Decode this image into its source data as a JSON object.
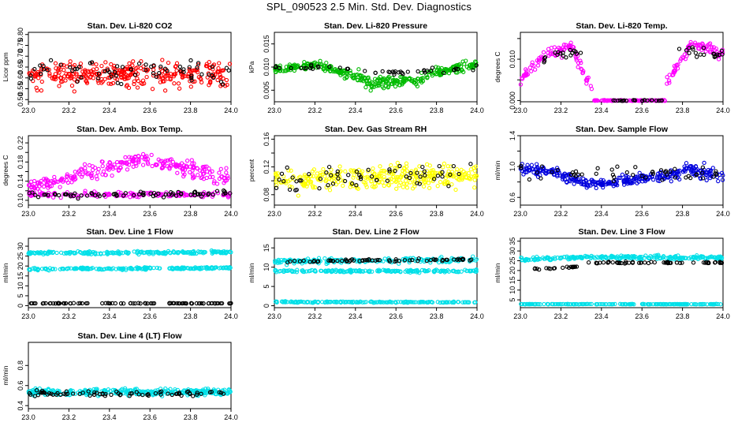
{
  "page_title": "SPL_090523  2.5 Min. Std. Dev. Diagnostics",
  "chart_data": [
    {
      "type": "scatter",
      "title": "Stan. Dev. Li-820 CO2",
      "ylabel": "Licor ppm",
      "xlabel": "",
      "xlim": [
        23.0,
        24.0
      ],
      "ylim": [
        0.49,
        0.81
      ],
      "xticks": [
        23.0,
        23.2,
        23.4,
        23.6,
        23.8,
        24.0
      ],
      "yticks": [
        0.5,
        0.55,
        0.6,
        0.65,
        0.7,
        0.75,
        0.8
      ],
      "ytick_labels": [
        "0.50",
        "0.55",
        "0.60",
        "0.65",
        "0.70",
        "0.75",
        "0.80"
      ],
      "series": [
        {
          "name": "bands",
          "color": "#ff0000",
          "count": 320,
          "bands": [
            {
              "x0": 23.0,
              "x1": 24.0,
              "y0": 0.615,
              "y1": 0.615,
              "spread": 0.055
            }
          ]
        },
        {
          "name": "black",
          "color": "#000000",
          "count": 65,
          "bands": [
            {
              "x0": 23.0,
              "x1": 24.0,
              "y0": 0.63,
              "y1": 0.63,
              "spread": 0.05
            }
          ]
        }
      ]
    },
    {
      "type": "scatter",
      "title": "Stan. Dev. Li-820 Pressure",
      "ylabel": "kPa",
      "xlabel": "",
      "xlim": [
        23.0,
        24.0
      ],
      "ylim": [
        0.0025,
        0.0175
      ],
      "xticks": [
        23.0,
        23.2,
        23.4,
        23.6,
        23.8,
        24.0
      ],
      "yticks": [
        0.005,
        0.01,
        0.015
      ],
      "ytick_labels": [
        "0.005",
        "0.010",
        "0.015"
      ],
      "series": [
        {
          "name": "green",
          "color": "#00bb00",
          "count": 340,
          "bands": [
            {
              "x0": 23.0,
              "x1": 23.2,
              "y0": 0.0095,
              "y1": 0.0105,
              "spread": 0.0008
            },
            {
              "x0": 23.2,
              "x1": 23.45,
              "y0": 0.0105,
              "y1": 0.0075,
              "spread": 0.0011
            },
            {
              "x0": 23.45,
              "x1": 23.75,
              "y0": 0.0065,
              "y1": 0.0072,
              "spread": 0.0011
            },
            {
              "x0": 23.75,
              "x1": 24.0,
              "y0": 0.0085,
              "y1": 0.0105,
              "spread": 0.0009
            }
          ]
        },
        {
          "name": "black",
          "color": "#000000",
          "count": 45,
          "bands": [
            {
              "x0": 23.0,
              "x1": 23.3,
              "y0": 0.0098,
              "y1": 0.0105,
              "spread": 0.0005
            },
            {
              "x0": 23.3,
              "x1": 23.7,
              "y0": 0.0095,
              "y1": 0.0085,
              "spread": 0.0006
            },
            {
              "x0": 23.7,
              "x1": 24.0,
              "y0": 0.009,
              "y1": 0.0098,
              "spread": 0.0005
            }
          ]
        }
      ]
    },
    {
      "type": "scatter",
      "title": "Stan. Dev. Li-820 Temp.",
      "ylabel": "degrees C",
      "xlabel": "",
      "xlim": [
        23.0,
        24.0
      ],
      "ylim": [
        -0.0003,
        0.0165
      ],
      "xticks": [
        23.0,
        23.2,
        23.4,
        23.6,
        23.8,
        24.0
      ],
      "yticks": [
        0.0,
        0.005,
        0.01,
        0.015
      ],
      "ytick_labels": [
        "0.000",
        "",
        "0.010",
        ""
      ],
      "series": [
        {
          "name": "magenta",
          "color": "#ff00ff",
          "count": 260,
          "bands": [
            {
              "x0": 23.0,
              "x1": 23.12,
              "y0": 0.005,
              "y1": 0.011,
              "spread": 0.0015
            },
            {
              "x0": 23.12,
              "x1": 23.27,
              "y0": 0.011,
              "y1": 0.013,
              "spread": 0.0012
            },
            {
              "x0": 23.27,
              "x1": 23.36,
              "y0": 0.011,
              "y1": 0.002,
              "spread": 0.0015
            },
            {
              "x0": 23.36,
              "x1": 23.72,
              "y0": 0.0,
              "y1": 0.0,
              "spread": 0.0001
            },
            {
              "x0": 23.72,
              "x1": 23.85,
              "y0": 0.004,
              "y1": 0.014,
              "spread": 0.0015
            },
            {
              "x0": 23.85,
              "x1": 24.0,
              "y0": 0.014,
              "y1": 0.011,
              "spread": 0.0015
            }
          ]
        },
        {
          "name": "black",
          "color": "#000000",
          "count": 60,
          "bands": [
            {
              "x0": 23.1,
              "x1": 23.3,
              "y0": 0.01,
              "y1": 0.012,
              "spread": 0.001
            },
            {
              "x0": 23.45,
              "x1": 23.7,
              "y0": 0.0,
              "y1": 0.0,
              "spread": 0.0001
            },
            {
              "x0": 23.78,
              "x1": 24.0,
              "y0": 0.012,
              "y1": 0.011,
              "spread": 0.0012
            }
          ]
        }
      ]
    },
    {
      "type": "scatter",
      "title": "Stan. Dev. Amb. Box Temp.",
      "ylabel": "degrees C",
      "xlabel": "",
      "xlim": [
        23.0,
        24.0
      ],
      "ylim": [
        0.09,
        0.235
      ],
      "xticks": [
        23.0,
        23.2,
        23.4,
        23.6,
        23.8,
        24.0
      ],
      "yticks": [
        0.1,
        0.12,
        0.14,
        0.16,
        0.18,
        0.2,
        0.22
      ],
      "ytick_labels": [
        "0.10",
        "",
        "0.14",
        "",
        "0.18",
        "",
        "0.22"
      ],
      "series": [
        {
          "name": "magenta-high",
          "color": "#ff00ff",
          "count": 260,
          "bands": [
            {
              "x0": 23.0,
              "x1": 23.25,
              "y0": 0.125,
              "y1": 0.15,
              "spread": 0.013
            },
            {
              "x0": 23.25,
              "x1": 23.6,
              "y0": 0.15,
              "y1": 0.19,
              "spread": 0.017
            },
            {
              "x0": 23.6,
              "x1": 24.0,
              "y0": 0.185,
              "y1": 0.145,
              "spread": 0.017
            }
          ]
        },
        {
          "name": "magenta-low",
          "color": "#ff00ff",
          "count": 150,
          "bands": [
            {
              "x0": 23.0,
              "x1": 24.0,
              "y0": 0.112,
              "y1": 0.112,
              "spread": 0.006
            }
          ]
        },
        {
          "name": "black",
          "color": "#000000",
          "count": 75,
          "bands": [
            {
              "x0": 23.0,
              "x1": 24.0,
              "y0": 0.11,
              "y1": 0.115,
              "spread": 0.006
            }
          ]
        }
      ]
    },
    {
      "type": "scatter",
      "title": "Stan. Dev. Gas Stream RH",
      "ylabel": "percent",
      "xlabel": "",
      "xlim": [
        23.0,
        24.0
      ],
      "ylim": [
        0.065,
        0.165
      ],
      "xticks": [
        23.0,
        23.2,
        23.4,
        23.6,
        23.8,
        24.0
      ],
      "yticks": [
        0.08,
        0.1,
        0.12,
        0.14,
        0.16
      ],
      "ytick_labels": [
        "0.08",
        "",
        "0.12",
        "",
        "0.16"
      ],
      "series": [
        {
          "name": "yellow",
          "color": "#ffff00",
          "count": 330,
          "bands": [
            {
              "x0": 23.0,
              "x1": 24.0,
              "y0": 0.103,
              "y1": 0.108,
              "spread": 0.016
            }
          ]
        },
        {
          "name": "black",
          "color": "#000000",
          "count": 60,
          "bands": [
            {
              "x0": 23.0,
              "x1": 24.0,
              "y0": 0.1,
              "y1": 0.11,
              "spread": 0.016
            }
          ]
        }
      ]
    },
    {
      "type": "scatter",
      "title": "Stan. Dev. Sample Flow",
      "ylabel": "ml/min",
      "xlabel": "",
      "xlim": [
        23.0,
        24.0
      ],
      "ylim": [
        0.5,
        1.4
      ],
      "xticks": [
        23.0,
        23.2,
        23.4,
        23.6,
        23.8,
        24.0
      ],
      "yticks": [
        0.6,
        0.8,
        1.0,
        1.2,
        1.4
      ],
      "ytick_labels": [
        "0.6",
        "",
        "1.0",
        "",
        "1.4"
      ],
      "series": [
        {
          "name": "blue",
          "color": "#0000dd",
          "count": 320,
          "bands": [
            {
              "x0": 23.0,
              "x1": 23.2,
              "y0": 0.97,
              "y1": 0.93,
              "spread": 0.07
            },
            {
              "x0": 23.2,
              "x1": 23.4,
              "y0": 0.88,
              "y1": 0.75,
              "spread": 0.06
            },
            {
              "x0": 23.4,
              "x1": 23.8,
              "y0": 0.78,
              "y1": 0.9,
              "spread": 0.06
            },
            {
              "x0": 23.8,
              "x1": 24.0,
              "y0": 1.0,
              "y1": 0.85,
              "spread": 0.08
            }
          ]
        },
        {
          "name": "black",
          "color": "#000000",
          "count": 50,
          "bands": [
            {
              "x0": 23.0,
              "x1": 24.0,
              "y0": 0.92,
              "y1": 0.92,
              "spread": 0.1
            }
          ]
        }
      ]
    },
    {
      "type": "scatter",
      "title": "Stan. Dev. Line 1 Flow",
      "ylabel": "ml/min",
      "xlabel": "",
      "xlim": [
        23.0,
        24.0
      ],
      "ylim": [
        -1,
        34
      ],
      "xticks": [
        23.0,
        23.2,
        23.4,
        23.6,
        23.8,
        24.0
      ],
      "yticks": [
        0,
        5,
        10,
        15,
        20,
        25,
        30
      ],
      "ytick_labels": [
        "0",
        "5",
        "10",
        "15",
        "20",
        "25",
        "30"
      ],
      "series": [
        {
          "name": "cyan-upper",
          "color": "#00e0e8",
          "count": 200,
          "bands": [
            {
              "x0": 23.0,
              "x1": 24.0,
              "y0": 26.5,
              "y1": 27.0,
              "spread": 0.7
            }
          ]
        },
        {
          "name": "cyan-lower",
          "color": "#00e0e8",
          "count": 200,
          "bands": [
            {
              "x0": 23.0,
              "x1": 24.0,
              "y0": 18.5,
              "y1": 19.0,
              "spread": 0.5
            }
          ]
        },
        {
          "name": "black",
          "color": "#000000",
          "count": 90,
          "bands": [
            {
              "x0": 23.0,
              "x1": 24.0,
              "y0": 1.2,
              "y1": 1.2,
              "spread": 0.1
            }
          ]
        }
      ]
    },
    {
      "type": "scatter",
      "title": "Stan. Dev. Line 2 Flow",
      "ylabel": "ml/min",
      "xlabel": "",
      "xlim": [
        23.0,
        24.0
      ],
      "ylim": [
        -0.5,
        17.5
      ],
      "xticks": [
        23.0,
        23.2,
        23.4,
        23.6,
        23.8,
        24.0
      ],
      "yticks": [
        0,
        5,
        10,
        15
      ],
      "ytick_labels": [
        "0",
        "5",
        "10",
        "15"
      ],
      "series": [
        {
          "name": "cyan-upper",
          "color": "#00e0e8",
          "count": 180,
          "bands": [
            {
              "x0": 23.0,
              "x1": 24.0,
              "y0": 11.5,
              "y1": 12.0,
              "spread": 0.6
            }
          ]
        },
        {
          "name": "cyan-mid",
          "color": "#00e0e8",
          "count": 180,
          "bands": [
            {
              "x0": 23.0,
              "x1": 24.0,
              "y0": 9.0,
              "y1": 9.0,
              "spread": 0.3
            }
          ]
        },
        {
          "name": "cyan-low",
          "color": "#00e0e8",
          "count": 160,
          "bands": [
            {
              "x0": 23.0,
              "x1": 24.0,
              "y0": 1.0,
              "y1": 0.9,
              "spread": 0.15
            }
          ]
        },
        {
          "name": "black",
          "color": "#000000",
          "count": 65,
          "bands": [
            {
              "x0": 23.05,
              "x1": 24.0,
              "y0": 11.5,
              "y1": 12.0,
              "spread": 0.3
            }
          ]
        }
      ]
    },
    {
      "type": "scatter",
      "title": "Stan. Dev. Line 3 Flow",
      "ylabel": "ml/min",
      "xlabel": "",
      "xlim": [
        23.0,
        24.0
      ],
      "ylim": [
        1,
        36.5
      ],
      "xticks": [
        23.0,
        23.2,
        23.4,
        23.6,
        23.8,
        24.0
      ],
      "yticks": [
        5,
        10,
        15,
        20,
        25,
        30,
        35
      ],
      "ytick_labels": [
        "5",
        "10",
        "15",
        "20",
        "25",
        "30",
        "35"
      ],
      "series": [
        {
          "name": "cyan-upper",
          "color": "#00e0e8",
          "count": 230,
          "bands": [
            {
              "x0": 23.0,
              "x1": 23.3,
              "y0": 25.8,
              "y1": 26.5,
              "spread": 0.9
            },
            {
              "x0": 23.3,
              "x1": 24.0,
              "y0": 26.8,
              "y1": 26.5,
              "spread": 0.9
            }
          ]
        },
        {
          "name": "cyan-low",
          "color": "#00e0e8",
          "count": 180,
          "bands": [
            {
              "x0": 23.0,
              "x1": 24.0,
              "y0": 2.8,
              "y1": 2.8,
              "spread": 0.1
            }
          ]
        },
        {
          "name": "black",
          "color": "#000000",
          "count": 75,
          "bands": [
            {
              "x0": 23.05,
              "x1": 23.28,
              "y0": 20.5,
              "y1": 22.0,
              "spread": 0.5
            },
            {
              "x0": 23.33,
              "x1": 24.0,
              "y0": 24.0,
              "y1": 24.0,
              "spread": 0.4
            }
          ]
        }
      ]
    },
    {
      "type": "scatter",
      "title": "Stan. Dev. Line 4 (LT) Flow",
      "ylabel": "ml/min",
      "xlabel": "",
      "xlim": [
        23.0,
        24.0
      ],
      "ylim": [
        0.37,
        1.03
      ],
      "xticks": [
        23.0,
        23.2,
        23.4,
        23.6,
        23.8,
        24.0
      ],
      "yticks": [
        0.4,
        0.6,
        0.8
      ],
      "ytick_labels": [
        "0.4",
        "0.6",
        "0.8"
      ],
      "series": [
        {
          "name": "cyan",
          "color": "#00e0e8",
          "count": 330,
          "bands": [
            {
              "x0": 23.0,
              "x1": 24.0,
              "y0": 0.535,
              "y1": 0.535,
              "spread": 0.03
            }
          ]
        },
        {
          "name": "black",
          "color": "#000000",
          "count": 75,
          "bands": [
            {
              "x0": 23.0,
              "x1": 24.0,
              "y0": 0.52,
              "y1": 0.52,
              "spread": 0.025
            }
          ]
        }
      ]
    }
  ]
}
